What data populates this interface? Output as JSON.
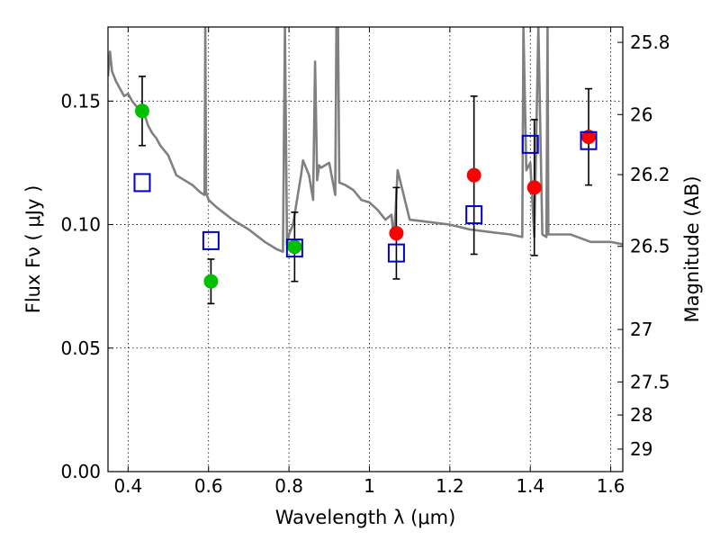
{
  "chart_data": {
    "type": "scatter",
    "title": "",
    "xlabel": "Wavelength  λ (μm)",
    "ylabel": "Flux  Fν  ( μJy )",
    "ylabel_right": "Magnitude (AB)",
    "xlim": [
      0.35,
      1.63
    ],
    "ylim": [
      0.0,
      0.18
    ],
    "grid": true,
    "x_ticks": [
      {
        "value": 0.4,
        "label": "0.4"
      },
      {
        "value": 0.6,
        "label": "0.6"
      },
      {
        "value": 0.8,
        "label": "0.8"
      },
      {
        "value": 1.0,
        "label": "1"
      },
      {
        "value": 1.2,
        "label": "1.2"
      },
      {
        "value": 1.4,
        "label": "1.4"
      },
      {
        "value": 1.6,
        "label": "1.6"
      }
    ],
    "y_ticks": [
      {
        "value": 0.0,
        "label": "0.00"
      },
      {
        "value": 0.05,
        "label": "0.05"
      },
      {
        "value": 0.1,
        "label": "0.10"
      },
      {
        "value": 0.15,
        "label": "0.15"
      }
    ],
    "right_ticks": [
      {
        "value": 25.8,
        "label": "25.8"
      },
      {
        "value": 26.0,
        "label": "26"
      },
      {
        "value": 26.2,
        "label": "26.2"
      },
      {
        "value": 26.5,
        "label": "26.5"
      },
      {
        "value": 27.0,
        "label": "27"
      },
      {
        "value": 27.5,
        "label": "27.5"
      },
      {
        "value": 28.0,
        "label": "28"
      },
      {
        "value": 29.0,
        "label": "29"
      }
    ],
    "series": [
      {
        "marker": "circle",
        "color": "#00c000",
        "points": [
          {
            "x": 0.435,
            "y": 0.146,
            "yerr": 0.014
          },
          {
            "x": 0.606,
            "y": 0.077,
            "yerr": 0.009
          },
          {
            "x": 0.814,
            "y": 0.091,
            "yerr": 0.014
          }
        ]
      },
      {
        "marker": "circle",
        "color": "#ff0000",
        "points": [
          {
            "x": 1.067,
            "y": 0.0965,
            "yerr": 0.0185
          },
          {
            "x": 1.26,
            "y": 0.12,
            "yerr": 0.032
          },
          {
            "x": 1.41,
            "y": 0.115,
            "yerr": 0.0275
          },
          {
            "x": 1.545,
            "y": 0.1355,
            "yerr": 0.0195
          }
        ]
      },
      {
        "marker": "open-square",
        "color": "#0000cc",
        "points": [
          {
            "x": 0.435,
            "y": 0.117
          },
          {
            "x": 0.606,
            "y": 0.0935
          },
          {
            "x": 0.814,
            "y": 0.0905
          },
          {
            "x": 1.067,
            "y": 0.0885
          },
          {
            "x": 1.26,
            "y": 0.104
          },
          {
            "x": 1.4,
            "y": 0.1325
          },
          {
            "x": 1.545,
            "y": 0.134
          }
        ]
      },
      {
        "type": "line",
        "color": "#808080",
        "x": [
          0.35,
          0.355,
          0.36,
          0.37,
          0.38,
          0.39,
          0.4,
          0.41,
          0.42,
          0.43,
          0.44,
          0.45,
          0.46,
          0.47,
          0.48,
          0.5,
          0.52,
          0.54,
          0.56,
          0.58,
          0.59,
          0.592,
          0.594,
          0.6,
          0.62,
          0.66,
          0.7,
          0.74,
          0.77,
          0.785,
          0.79,
          0.795,
          0.8,
          0.81,
          0.82,
          0.83,
          0.835,
          0.84,
          0.85,
          0.86,
          0.865,
          0.87,
          0.875,
          0.88,
          0.9,
          0.915,
          0.918,
          0.922,
          0.925,
          0.94,
          0.96,
          0.98,
          1.0,
          1.02,
          1.04,
          1.055,
          1.06,
          1.065,
          1.07,
          1.1,
          1.15,
          1.2,
          1.25,
          1.3,
          1.35,
          1.38,
          1.383,
          1.39,
          1.4,
          1.41,
          1.42,
          1.43,
          1.44,
          1.443,
          1.445,
          1.5,
          1.55,
          1.6,
          1.63
        ],
        "y": [
          0.16,
          0.17,
          0.162,
          0.158,
          0.155,
          0.152,
          0.153,
          0.15,
          0.148,
          0.146,
          0.145,
          0.14,
          0.137,
          0.135,
          0.132,
          0.128,
          0.12,
          0.118,
          0.116,
          0.113,
          0.112,
          0.18,
          0.113,
          0.11,
          0.107,
          0.102,
          0.098,
          0.093,
          0.09,
          0.089,
          0.18,
          0.092,
          0.096,
          0.1,
          0.11,
          0.12,
          0.126,
          0.124,
          0.12,
          0.11,
          0.166,
          0.118,
          0.124,
          0.123,
          0.125,
          0.112,
          0.18,
          0.18,
          0.117,
          0.116,
          0.114,
          0.11,
          0.109,
          0.106,
          0.102,
          0.104,
          0.095,
          0.105,
          0.122,
          0.102,
          0.101,
          0.1,
          0.098,
          0.097,
          0.096,
          0.095,
          0.18,
          0.122,
          0.125,
          0.095,
          0.18,
          0.096,
          0.095,
          0.18,
          0.096,
          0.096,
          0.093,
          0.093,
          0.092
        ]
      }
    ]
  }
}
